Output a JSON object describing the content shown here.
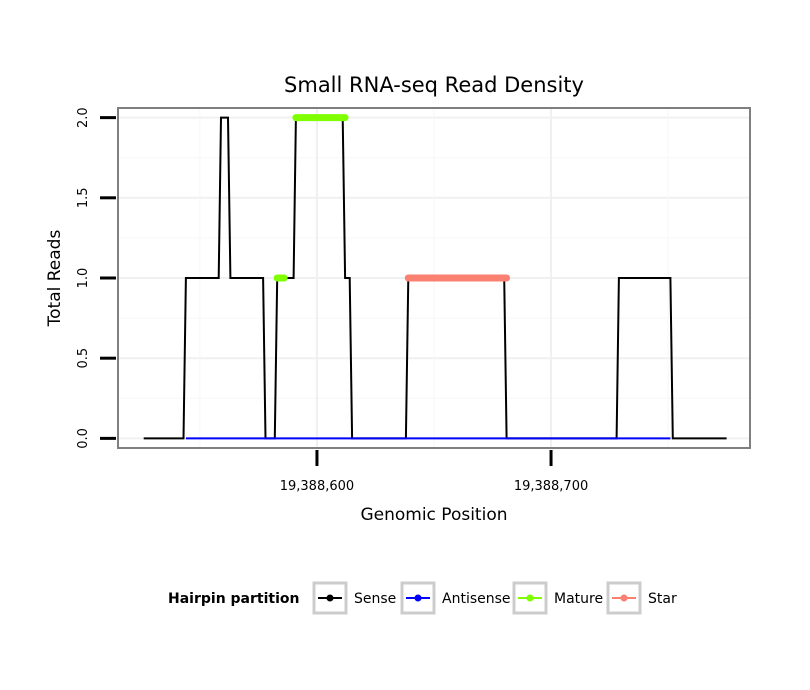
{
  "chart_data": {
    "type": "line",
    "title": "Small RNA-seq Read Density",
    "xlabel": "Genomic Position",
    "ylabel": "Total Reads",
    "xlim": [
      19388515,
      19388785
    ],
    "ylim": [
      -0.06,
      2.06
    ],
    "x_ticks": [
      {
        "value": 19388600,
        "label": "19,388,600"
      },
      {
        "value": 19388700,
        "label": "19,388,700"
      }
    ],
    "y_ticks": [
      {
        "value": 0,
        "label": "0.0"
      },
      {
        "value": 0.5,
        "label": "0.5"
      },
      {
        "value": 1,
        "label": "1.0"
      },
      {
        "value": 1.5,
        "label": "1.5"
      },
      {
        "value": 2,
        "label": "2.0"
      }
    ],
    "grid": true,
    "series": [
      {
        "name": "Sense",
        "color": "#000000",
        "style": "line",
        "x": [
          19388526,
          19388543,
          19388544,
          19388558,
          19388559,
          19388562,
          19388563,
          19388577,
          19388578,
          19388582,
          19388583,
          19388585,
          19388586,
          19388590,
          19388591,
          19388611,
          19388612,
          19388614,
          19388615,
          19388638,
          19388639,
          19388680,
          19388681,
          19388728,
          19388729,
          19388751,
          19388752,
          19388775
        ],
        "values": [
          0,
          0,
          1,
          1,
          2,
          2,
          1,
          1,
          0,
          0,
          1,
          1,
          1,
          1,
          2,
          2,
          1,
          1,
          0,
          0,
          1,
          1,
          0,
          0,
          1,
          1,
          0,
          0
        ]
      },
      {
        "name": "Antisense",
        "color": "#0000ff",
        "style": "line",
        "x": [
          19388544,
          19388751
        ],
        "values": [
          0,
          0
        ]
      },
      {
        "name": "Mature",
        "color": "#7fff00",
        "style": "thick",
        "segments": [
          {
            "x": [
              19388583,
              19388586
            ],
            "value": 1
          },
          {
            "x": [
              19388591,
              19388612
            ],
            "value": 2
          }
        ]
      },
      {
        "name": "Star",
        "color": "#fa8072",
        "style": "thick",
        "segments": [
          {
            "x": [
              19388639,
              19388681
            ],
            "value": 1
          }
        ]
      }
    ],
    "legend": {
      "title": "Hairpin partition",
      "position": "bottom",
      "entries": [
        "Sense",
        "Antisense",
        "Mature",
        "Star"
      ]
    }
  }
}
